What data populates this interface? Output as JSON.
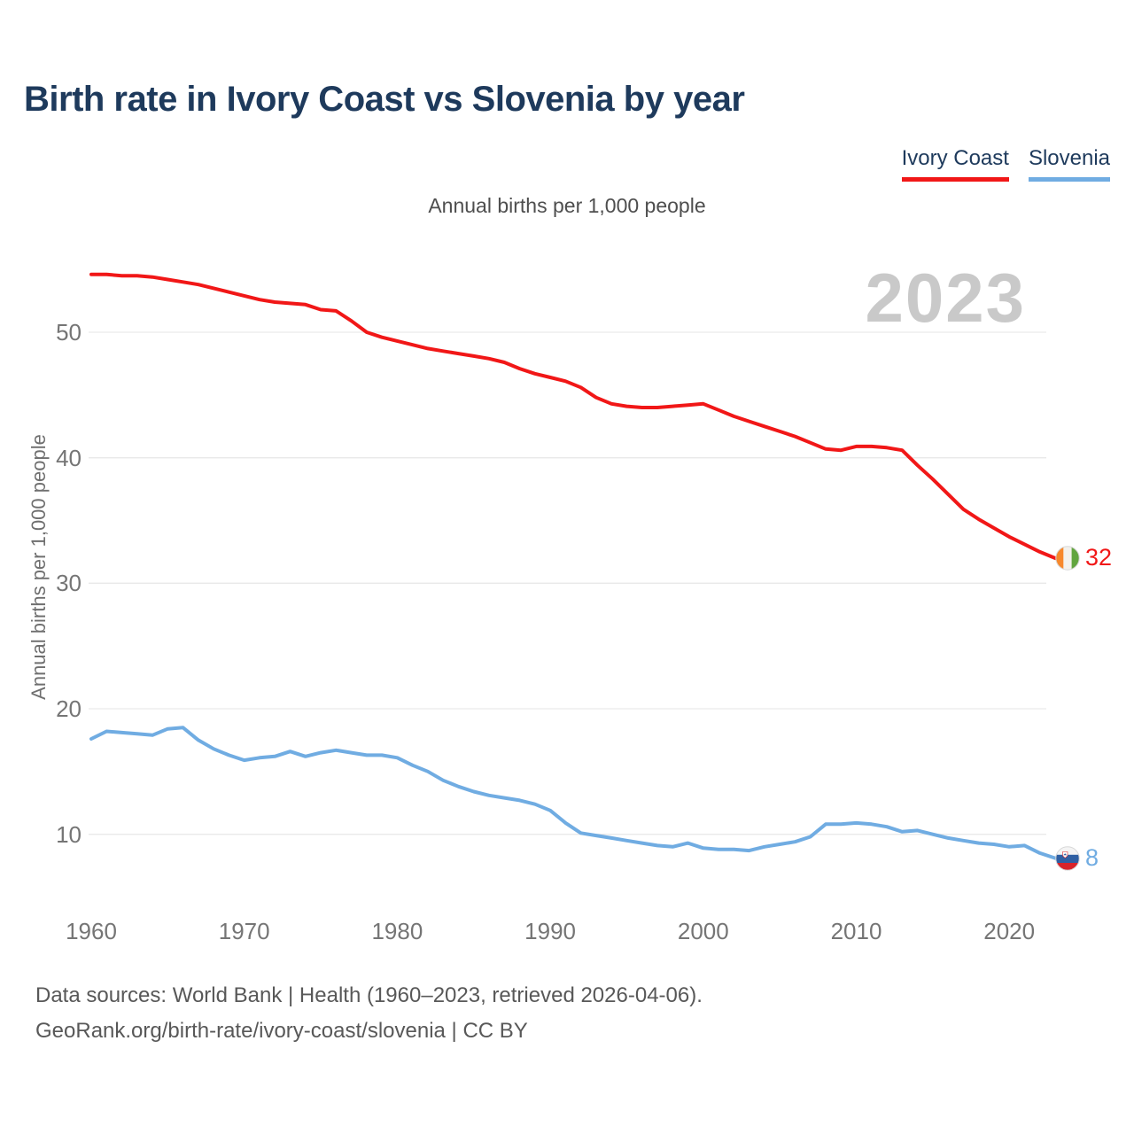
{
  "title": "Birth rate in Ivory Coast vs Slovenia by year",
  "subtitle": "Annual births per 1,000 people",
  "watermark_year": "2023",
  "legend": {
    "items": [
      {
        "label": "Ivory Coast",
        "color": "#f11717"
      },
      {
        "label": "Slovenia",
        "color": "#70ace2"
      }
    ]
  },
  "end_labels": {
    "ivory_coast": "32",
    "slovenia": "8"
  },
  "footer": {
    "line1": "Data sources: World Bank | Health (1960–2023, retrieved 2026-04-06).",
    "line2": "GeoRank.org/birth-rate/ivory-coast/slovenia | CC BY"
  },
  "colors": {
    "ivory_coast_line": "#f11717",
    "slovenia_line": "#70ace2",
    "title_text": "#1e3a5c",
    "axis_text": "#757575",
    "grid": "#e9e9e9",
    "watermark": "#c9c9c9",
    "footer_text": "#585858"
  },
  "chart_data": {
    "type": "line",
    "title": "Birth rate in Ivory Coast vs Slovenia by year",
    "subtitle": "Annual births per 1,000 people",
    "ylabel": "Annual births per 1,000 people",
    "xlabel": "",
    "x": [
      1960,
      1961,
      1962,
      1963,
      1964,
      1965,
      1966,
      1967,
      1968,
      1969,
      1970,
      1971,
      1972,
      1973,
      1974,
      1975,
      1976,
      1977,
      1978,
      1979,
      1980,
      1981,
      1982,
      1983,
      1984,
      1985,
      1986,
      1987,
      1988,
      1989,
      1990,
      1991,
      1992,
      1993,
      1994,
      1995,
      1996,
      1997,
      1998,
      1999,
      2000,
      2001,
      2002,
      2003,
      2004,
      2005,
      2006,
      2007,
      2008,
      2009,
      2010,
      2011,
      2012,
      2013,
      2014,
      2015,
      2016,
      2017,
      2018,
      2019,
      2020,
      2021,
      2022,
      2023
    ],
    "series": [
      {
        "name": "Ivory Coast",
        "color": "#f11717",
        "end_label": "32",
        "values": [
          54.6,
          54.6,
          54.5,
          54.5,
          54.4,
          54.2,
          54.0,
          53.8,
          53.5,
          53.2,
          52.9,
          52.6,
          52.4,
          52.3,
          52.2,
          51.8,
          51.7,
          50.9,
          50.0,
          49.6,
          49.3,
          49.0,
          48.7,
          48.5,
          48.3,
          48.1,
          47.9,
          47.6,
          47.1,
          46.7,
          46.4,
          46.1,
          45.6,
          44.8,
          44.3,
          44.1,
          44.0,
          44.0,
          44.1,
          44.2,
          44.3,
          43.8,
          43.3,
          42.9,
          42.5,
          42.1,
          41.7,
          41.2,
          40.7,
          40.6,
          40.9,
          40.9,
          40.8,
          40.6,
          39.4,
          38.3,
          37.1,
          35.9,
          35.1,
          34.4,
          33.7,
          33.1,
          32.5,
          32.0
        ]
      },
      {
        "name": "Slovenia",
        "color": "#70ace2",
        "end_label": "8",
        "values": [
          17.6,
          18.2,
          18.1,
          18.0,
          17.9,
          18.4,
          18.5,
          17.5,
          16.8,
          16.3,
          15.9,
          16.1,
          16.2,
          16.6,
          16.2,
          16.5,
          16.7,
          16.5,
          16.3,
          16.3,
          16.1,
          15.5,
          15.0,
          14.3,
          13.8,
          13.4,
          13.1,
          12.9,
          12.7,
          12.4,
          11.9,
          10.9,
          10.1,
          9.9,
          9.7,
          9.5,
          9.3,
          9.1,
          9.0,
          9.3,
          8.9,
          8.8,
          8.8,
          8.7,
          9.0,
          9.2,
          9.4,
          9.8,
          10.8,
          10.8,
          10.9,
          10.8,
          10.6,
          10.2,
          10.3,
          10.0,
          9.7,
          9.5,
          9.3,
          9.2,
          9.0,
          9.1,
          8.5,
          8.1
        ]
      }
    ],
    "xticks": [
      1960,
      1970,
      1980,
      1990,
      2000,
      2010,
      2020
    ],
    "yticks": [
      10,
      20,
      30,
      40,
      50
    ],
    "xlim": [
      1960,
      2023
    ],
    "ylim": [
      5,
      57
    ],
    "grid": "horizontal-only",
    "legend_position": "top-right",
    "annotations": {
      "watermark": "2023"
    }
  }
}
